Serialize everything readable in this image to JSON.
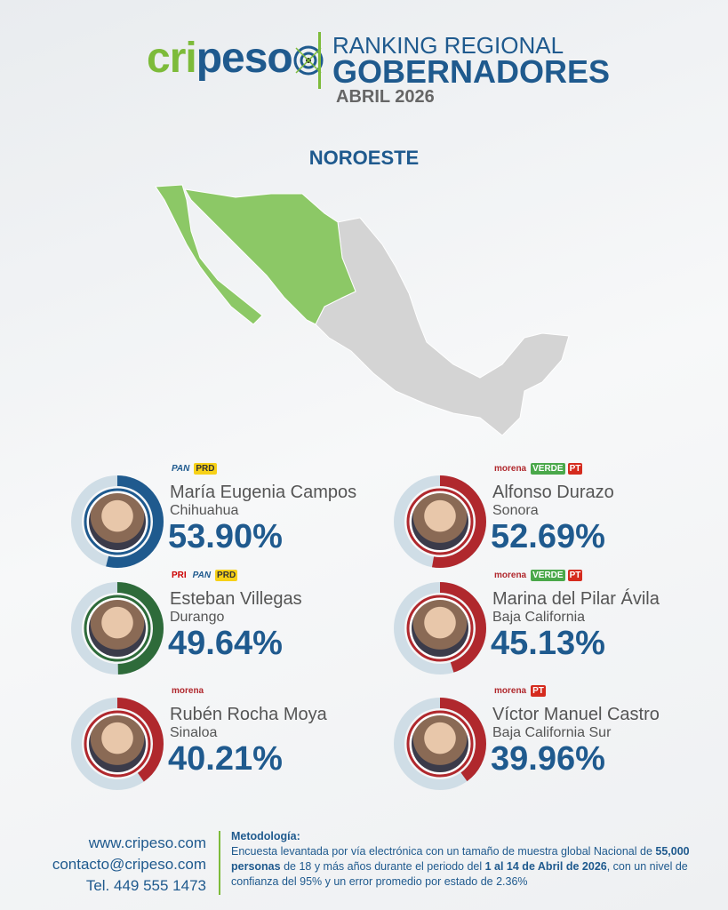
{
  "header": {
    "logo": "cripeso",
    "title_line1": "RANKING REGIONAL",
    "title_line2": "GOBERNADORES",
    "date": "ABRIL 2026"
  },
  "region": "NOROESTE",
  "colors": {
    "pan_blue": "#1f5a8e",
    "green": "#2e6b3a",
    "morena_red": "#b0282d",
    "map_green": "#8cc866",
    "map_gray": "#d4d4d4",
    "ring_bg": "#cfdde6"
  },
  "governors": [
    {
      "name": "María Eugenia Campos",
      "state": "Chihuahua",
      "percent": "53.90%",
      "value": 53.9,
      "parties": [
        "PAN",
        "PRD"
      ],
      "color": "#1f5a8e"
    },
    {
      "name": "Alfonso Durazo",
      "state": "Sonora",
      "percent": "52.69%",
      "value": 52.69,
      "parties": [
        "morena",
        "VERDE",
        "PT"
      ],
      "color": "#b0282d"
    },
    {
      "name": "Esteban Villegas",
      "state": "Durango",
      "percent": "49.64%",
      "value": 49.64,
      "parties": [
        "PRI",
        "PAN",
        "PRD"
      ],
      "color": "#2e6b3a"
    },
    {
      "name": "Marina del Pilar Ávila",
      "state": "Baja California",
      "percent": "45.13%",
      "value": 45.13,
      "parties": [
        "morena",
        "VERDE",
        "PT"
      ],
      "color": "#b0282d"
    },
    {
      "name": "Rubén Rocha Moya",
      "state": "Sinaloa",
      "percent": "40.21%",
      "value": 40.21,
      "parties": [
        "morena"
      ],
      "color": "#b0282d"
    },
    {
      "name": "Víctor Manuel Castro",
      "state": "Baja California Sur",
      "percent": "39.96%",
      "value": 39.96,
      "parties": [
        "morena",
        "PT"
      ],
      "color": "#b0282d"
    }
  ],
  "footer": {
    "web": "www.cripeso.com",
    "email": "contacto@cripeso.com",
    "phone": "Tel. 449 555 1473",
    "met_title": "Metodología:",
    "met_a": "Encuesta levantada por vía electrónica con un tamaño de muestra global Nacional de ",
    "met_b": "55,000 personas",
    "met_c": " de 18 y más años durante el periodo del ",
    "met_d": "1 al 14 de Abril de 2026",
    "met_e": ", con un nivel de confianza del 95% y un error promedio por estado de 2.36%"
  }
}
